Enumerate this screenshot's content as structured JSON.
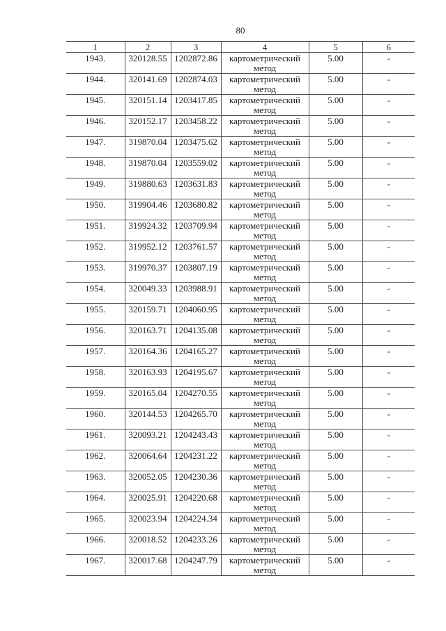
{
  "page": {
    "number": "80"
  },
  "table": {
    "headers": [
      "1",
      "2",
      "3",
      "4",
      "5",
      "6"
    ],
    "rows": [
      {
        "n": "1943.",
        "x": "320128.55",
        "y": "1202872.86",
        "method": "картометрический метод",
        "precision": "5.00",
        "note": "-"
      },
      {
        "n": "1944.",
        "x": "320141.69",
        "y": "1202874.03",
        "method": "картометрический метод",
        "precision": "5.00",
        "note": "-"
      },
      {
        "n": "1945.",
        "x": "320151.14",
        "y": "1203417.85",
        "method": "картометрический метод",
        "precision": "5.00",
        "note": "-"
      },
      {
        "n": "1946.",
        "x": "320152.17",
        "y": "1203458.22",
        "method": "картометрический метод",
        "precision": "5.00",
        "note": "-"
      },
      {
        "n": "1947.",
        "x": "319870.04",
        "y": "1203475.62",
        "method": "картометрический метод",
        "precision": "5.00",
        "note": "-"
      },
      {
        "n": "1948.",
        "x": "319870.04",
        "y": "1203559.02",
        "method": "картометрический метод",
        "precision": "5.00",
        "note": "-"
      },
      {
        "n": "1949.",
        "x": "319880.63",
        "y": "1203631.83",
        "method": "картометрический метод",
        "precision": "5.00",
        "note": "-"
      },
      {
        "n": "1950.",
        "x": "319904.46",
        "y": "1203680.82",
        "method": "картометрический метод",
        "precision": "5.00",
        "note": "-"
      },
      {
        "n": "1951.",
        "x": "319924.32",
        "y": "1203709.94",
        "method": "картометрический метод",
        "precision": "5.00",
        "note": "-"
      },
      {
        "n": "1952.",
        "x": "319952.12",
        "y": "1203761.57",
        "method": "картометрический метод",
        "precision": "5.00",
        "note": "-"
      },
      {
        "n": "1953.",
        "x": "319970.37",
        "y": "1203807.19",
        "method": "картометрический метод",
        "precision": "5.00",
        "note": "-"
      },
      {
        "n": "1954.",
        "x": "320049.33",
        "y": "1203988.91",
        "method": "картометрический метод",
        "precision": "5.00",
        "note": "-"
      },
      {
        "n": "1955.",
        "x": "320159.71",
        "y": "1204060.95",
        "method": "картометрический метод",
        "precision": "5.00",
        "note": "-"
      },
      {
        "n": "1956.",
        "x": "320163.71",
        "y": "1204135.08",
        "method": "картометрический метод",
        "precision": "5.00",
        "note": "-"
      },
      {
        "n": "1957.",
        "x": "320164.36",
        "y": "1204165.27",
        "method": "картометрический метод",
        "precision": "5.00",
        "note": "-"
      },
      {
        "n": "1958.",
        "x": "320163.93",
        "y": "1204195.67",
        "method": "картометрический метод",
        "precision": "5.00",
        "note": "-"
      },
      {
        "n": "1959.",
        "x": "320165.04",
        "y": "1204270.55",
        "method": "картометрический метод",
        "precision": "5.00",
        "note": "-"
      },
      {
        "n": "1960.",
        "x": "320144.53",
        "y": "1204265.70",
        "method": "картометрический метод",
        "precision": "5.00",
        "note": "-"
      },
      {
        "n": "1961.",
        "x": "320093.21",
        "y": "1204243.43",
        "method": "картометрический метод",
        "precision": "5.00",
        "note": "-"
      },
      {
        "n": "1962.",
        "x": "320064.64",
        "y": "1204231.22",
        "method": "картометрический метод",
        "precision": "5.00",
        "note": "-"
      },
      {
        "n": "1963.",
        "x": "320052.05",
        "y": "1204230.36",
        "method": "картометрический метод",
        "precision": "5.00",
        "note": "-"
      },
      {
        "n": "1964.",
        "x": "320025.91",
        "y": "1204220.68",
        "method": "картометрический метод",
        "precision": "5.00",
        "note": "-"
      },
      {
        "n": "1965.",
        "x": "320023.94",
        "y": "1204224.34",
        "method": "картометрический метод",
        "precision": "5.00",
        "note": "-"
      },
      {
        "n": "1966.",
        "x": "320018.52",
        "y": "1204233.26",
        "method": "картометрический метод",
        "precision": "5.00",
        "note": "-"
      },
      {
        "n": "1967.",
        "x": "320017.68",
        "y": "1204247.79",
        "method": "картометрический метод",
        "precision": "5.00",
        "note": "-"
      }
    ]
  }
}
